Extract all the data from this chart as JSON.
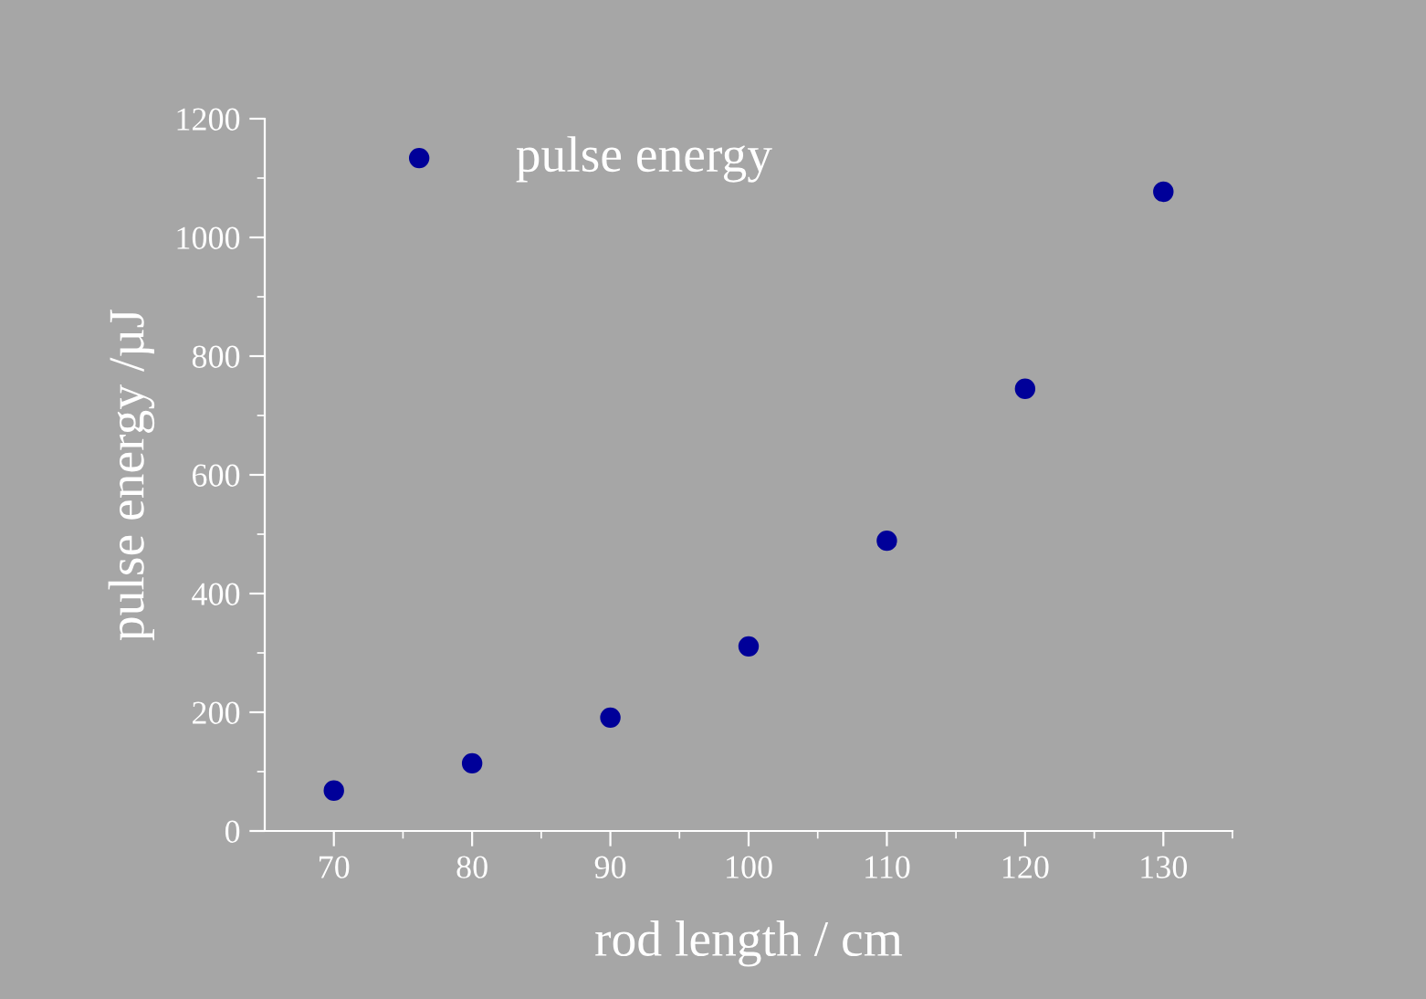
{
  "chart_data": {
    "type": "scatter",
    "xlabel": "rod length / cm",
    "ylabel": "pulse energy /µJ",
    "x": [
      70,
      80,
      90,
      100,
      110,
      120,
      130
    ],
    "series": [
      {
        "name": "pulse energy",
        "color": "#000099",
        "values": [
          68,
          114,
          191,
          311,
          489,
          745,
          1077
        ]
      }
    ],
    "xlim": [
      65,
      135
    ],
    "xticks": [
      70,
      80,
      90,
      100,
      110,
      120,
      130
    ],
    "ylim": [
      0,
      1200
    ],
    "yticks": [
      0,
      200,
      400,
      600,
      800,
      1000,
      1200
    ],
    "marker": "circle",
    "legend": "top left",
    "grid": false
  }
}
